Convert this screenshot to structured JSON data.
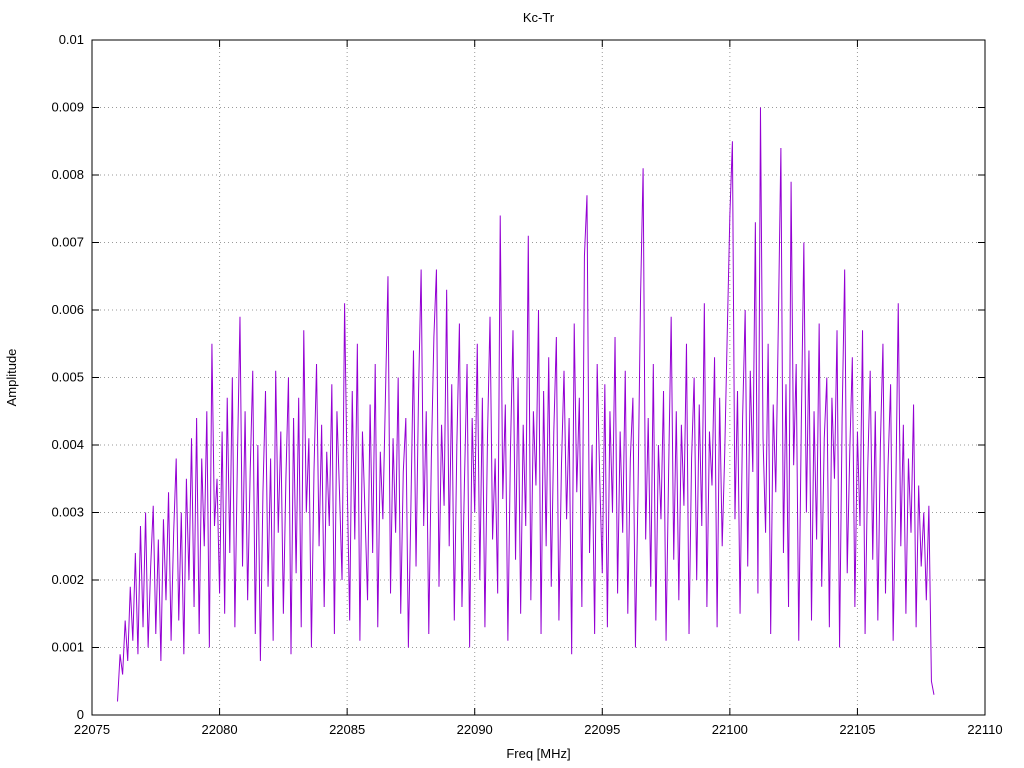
{
  "title": "Kc-Tr",
  "chart_data": {
    "type": "line",
    "title": "Kc-Tr",
    "xlabel": "Freq [MHz]",
    "ylabel": "Amplitude",
    "xlim": [
      22075,
      22110
    ],
    "ylim": [
      0,
      0.01
    ],
    "x_ticks": [
      22075,
      22080,
      22085,
      22090,
      22095,
      22100,
      22105,
      22110
    ],
    "x_tick_labels": [
      "22075",
      "22080",
      "22085",
      "22090",
      "22095",
      "22100",
      "22105",
      "22110"
    ],
    "y_ticks": [
      0,
      0.001,
      0.002,
      0.003,
      0.004,
      0.005,
      0.006,
      0.007,
      0.008,
      0.009,
      0.01
    ],
    "y_tick_labels": [
      "0",
      "0.001",
      "0.002",
      "0.003",
      "0.004",
      "0.005",
      "0.006",
      "0.007",
      "0.008",
      "0.009",
      "0.01"
    ],
    "grid": true,
    "grid_color": "#9a9a9a",
    "line_color": "#9400d3",
    "x_start": 22076.0,
    "x_step": 0.1,
    "y_unit": 0.0001,
    "values": [
      2,
      9,
      6,
      14,
      8,
      19,
      11,
      24,
      9,
      28,
      13,
      30,
      10,
      22,
      31,
      12,
      26,
      8,
      29,
      17,
      33,
      11,
      27,
      38,
      14,
      30,
      9,
      35,
      20,
      41,
      16,
      44,
      12,
      38,
      25,
      45,
      10,
      55,
      28,
      35,
      18,
      42,
      15,
      47,
      24,
      50,
      13,
      38,
      59,
      22,
      45,
      17,
      36,
      51,
      12,
      40,
      8,
      33,
      48,
      19,
      38,
      11,
      51,
      27,
      42,
      15,
      35,
      50,
      9,
      44,
      21,
      47,
      13,
      57,
      30,
      41,
      10,
      36,
      52,
      25,
      43,
      16,
      39,
      28,
      49,
      12,
      45,
      33,
      20,
      61,
      35,
      14,
      48,
      26,
      55,
      11,
      42,
      30,
      17,
      46,
      24,
      52,
      13,
      39,
      29,
      47,
      65,
      18,
      41,
      27,
      50,
      15,
      36,
      44,
      10,
      31,
      54,
      22,
      48,
      66,
      28,
      45,
      12,
      38,
      56,
      66,
      19,
      43,
      31,
      63,
      25,
      49,
      14,
      40,
      58,
      16,
      35,
      52,
      10,
      44,
      30,
      55,
      20,
      47,
      13,
      41,
      59,
      26,
      38,
      18,
      74,
      32,
      46,
      11,
      39,
      57,
      23,
      50,
      15,
      43,
      28,
      71,
      17,
      45,
      34,
      60,
      12,
      48,
      25,
      53,
      19,
      42,
      56,
      14,
      37,
      51,
      29,
      44,
      9,
      58,
      33,
      47,
      16,
      68,
      77,
      24,
      40,
      12,
      52,
      35,
      21,
      49,
      13,
      45,
      30,
      56,
      18,
      42,
      27,
      51,
      15,
      38,
      47,
      10,
      33,
      62,
      81,
      26,
      44,
      19,
      52,
      14,
      40,
      29,
      48,
      11,
      36,
      59,
      23,
      45,
      17,
      43,
      31,
      55,
      12,
      38,
      50,
      20,
      46,
      28,
      61,
      16,
      42,
      34,
      53,
      13,
      47,
      25,
      39,
      57,
      74,
      85,
      29,
      48,
      15,
      44,
      60,
      22,
      51,
      36,
      73,
      18,
      90,
      41,
      27,
      55,
      12,
      46,
      33,
      58,
      84,
      24,
      49,
      16,
      79,
      37,
      52,
      11,
      43,
      70,
      30,
      54,
      14,
      45,
      26,
      58,
      19,
      41,
      50,
      13,
      47,
      35,
      57,
      10,
      44,
      66,
      21,
      39,
      53,
      16,
      42,
      28,
      57,
      12,
      36,
      51,
      23,
      45,
      14,
      40,
      55,
      18,
      37,
      49,
      11,
      32,
      61,
      25,
      43,
      15,
      38,
      27,
      46,
      13,
      34,
      22,
      30,
      17,
      31,
      5,
      3
    ]
  }
}
